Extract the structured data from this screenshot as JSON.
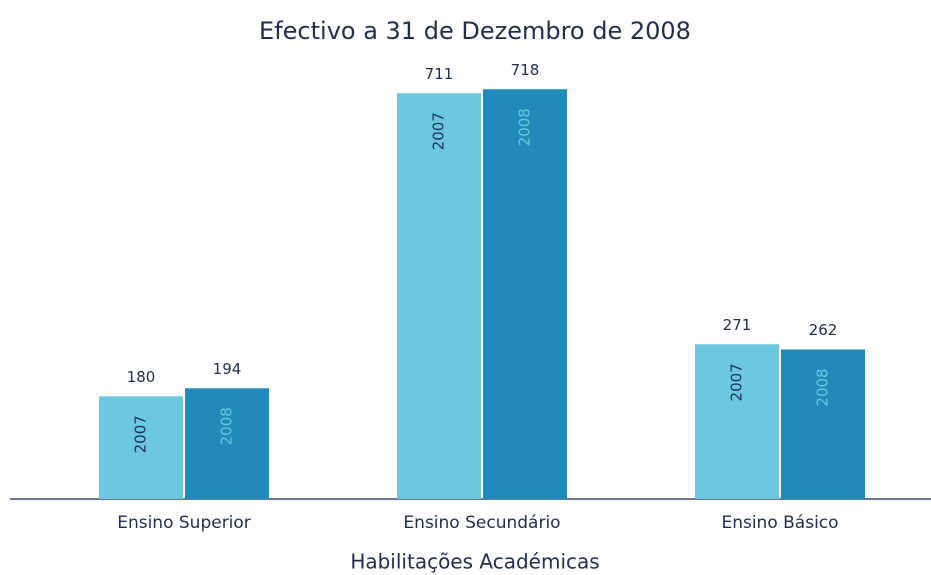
{
  "chart_data": {
    "type": "bar",
    "title": "Efectivo a 31 de Dezembro de 2008",
    "xlabel": "Habilitações Académicas",
    "categories": [
      "Ensino Superior",
      "Ensino Secundário",
      "Ensino Básico"
    ],
    "series": [
      {
        "name": "2007",
        "color": "#6bc8de",
        "values": [
          180,
          711,
          271
        ]
      },
      {
        "name": "2008",
        "color": "#1e8bbb",
        "values": [
          194,
          718,
          262
        ]
      }
    ],
    "ylim": [
      0,
      750
    ]
  }
}
